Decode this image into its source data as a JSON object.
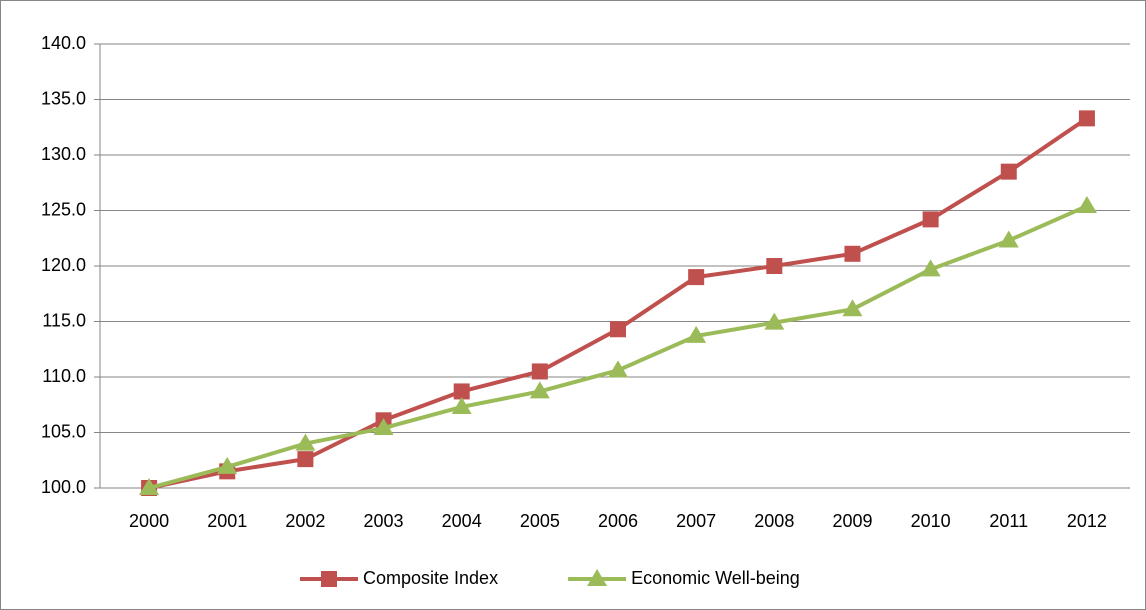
{
  "chart_data": {
    "type": "line",
    "categories": [
      "2000",
      "2001",
      "2002",
      "2003",
      "2004",
      "2005",
      "2006",
      "2007",
      "2008",
      "2009",
      "2010",
      "2011",
      "2012"
    ],
    "series": [
      {
        "name": "Composite Index",
        "color": "#c0504d",
        "marker": "square",
        "values": [
          100.0,
          101.5,
          102.6,
          106.1,
          108.7,
          110.5,
          114.3,
          119.0,
          120.0,
          121.1,
          124.2,
          128.5,
          133.3
        ]
      },
      {
        "name": "Economic Well-being",
        "color": "#9bbb59",
        "marker": "triangle",
        "values": [
          100.0,
          101.9,
          104.0,
          105.4,
          107.3,
          108.7,
          110.6,
          113.7,
          114.9,
          116.1,
          119.7,
          122.3,
          125.4
        ]
      }
    ],
    "ylim": [
      100,
      140
    ],
    "yticks": [
      {
        "value": 100,
        "label": "100.0"
      },
      {
        "value": 105,
        "label": "105.0"
      },
      {
        "value": 110,
        "label": "110.0"
      },
      {
        "value": 115,
        "label": "115.0"
      },
      {
        "value": 120,
        "label": "120.0"
      },
      {
        "value": 125,
        "label": "125.0"
      },
      {
        "value": 130,
        "label": "130.0"
      },
      {
        "value": 135,
        "label": "135.0"
      },
      {
        "value": 140,
        "label": "140.0"
      }
    ],
    "grid": true,
    "legend": "bottom"
  }
}
